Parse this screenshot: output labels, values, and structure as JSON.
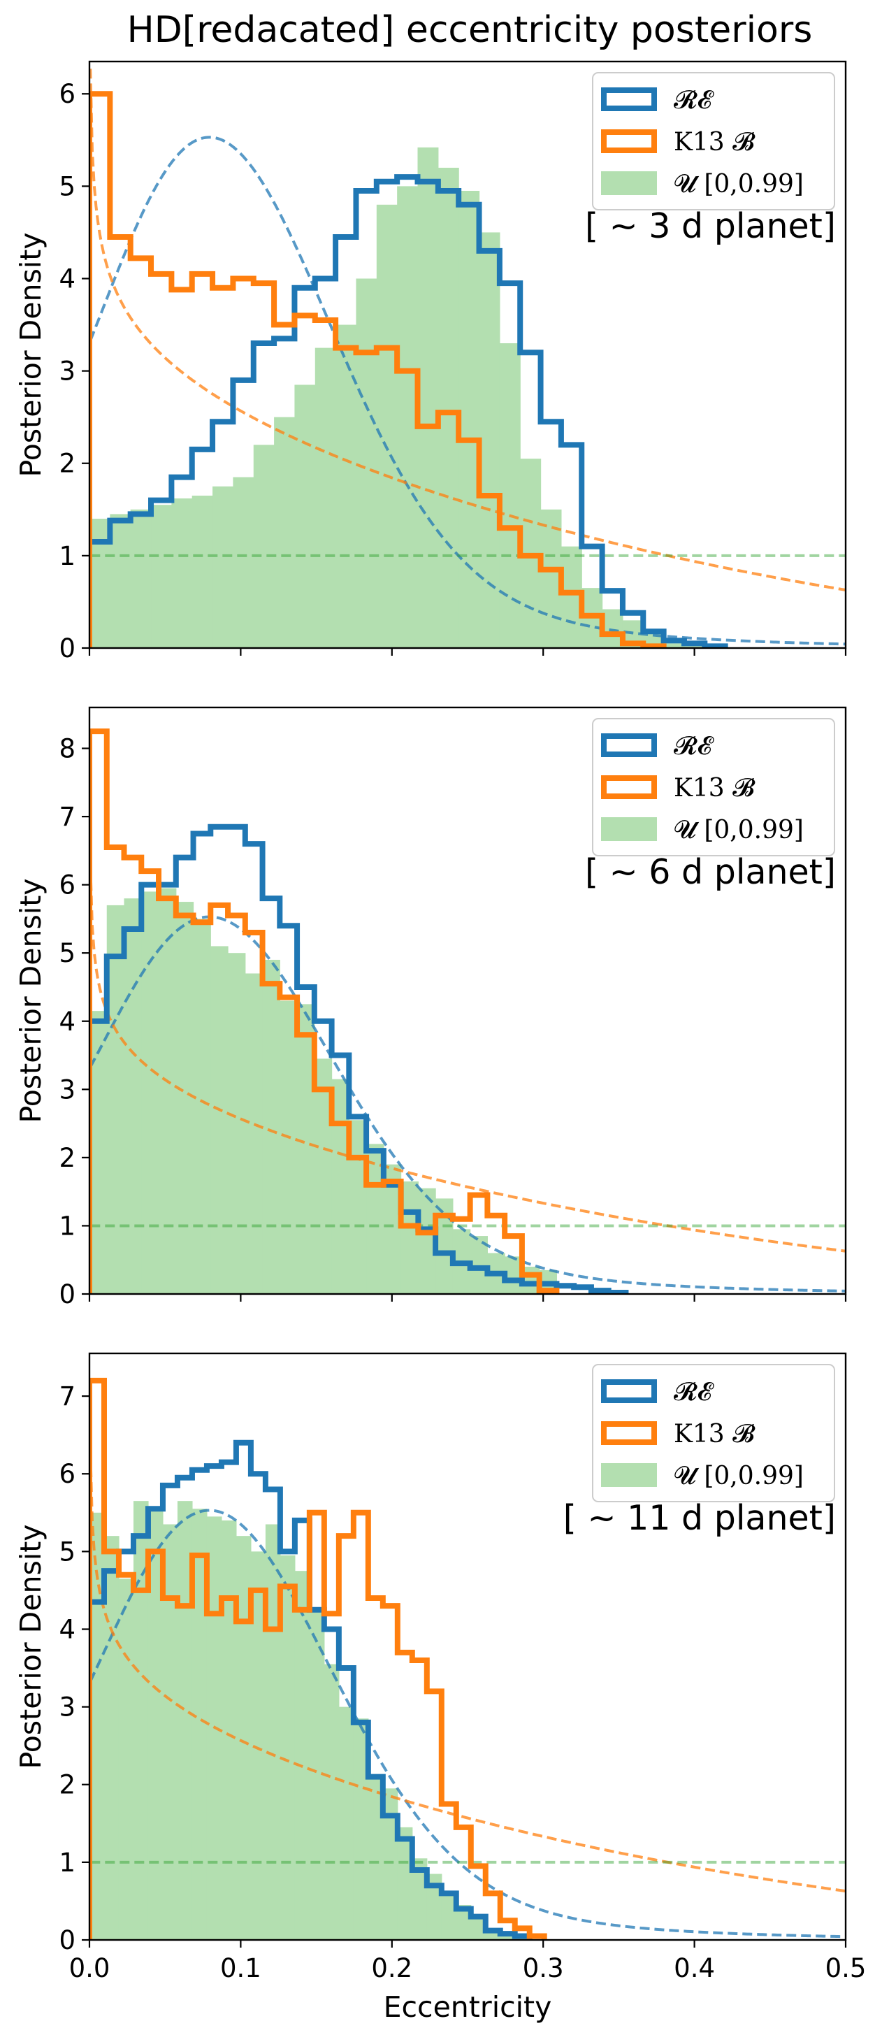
{
  "figure_title": "HD[redacated] eccentricity posteriors",
  "colors": {
    "re": "#1f77b4",
    "k13": "#ff7f0e",
    "uniform": "#2ca02c",
    "uniform_fill": "#b3dfb0"
  },
  "chart_data": [
    {
      "type": "histogram",
      "panel": "top",
      "annotation": "[$\\sim$3 d planet]",
      "annotation_display": "[ ~ 3 d planet]",
      "ylabel": "Posterior Density",
      "xlabel": "",
      "xlim": [
        0,
        0.5
      ],
      "ylim": [
        0,
        6.35
      ],
      "yticks": [
        0,
        1,
        2,
        3,
        4,
        5,
        6
      ],
      "xticks": [
        0.0,
        0.1,
        0.2,
        0.3,
        0.4,
        0.5
      ],
      "show_xticklabels": false,
      "legend": {
        "position": "top-right",
        "entries": [
          "𝓡𝓔",
          "K13 𝓑",
          "𝓤 [0,0.99]"
        ]
      },
      "bin_width": 0.01356,
      "series": [
        {
          "name": "𝓡𝓔",
          "style": "step",
          "values": [
            1.15,
            1.38,
            1.45,
            1.6,
            1.85,
            2.15,
            2.45,
            2.9,
            3.3,
            3.35,
            3.9,
            4.0,
            4.45,
            4.95,
            5.05,
            5.1,
            5.05,
            4.95,
            4.8,
            4.3,
            3.95,
            3.2,
            2.45,
            2.2,
            1.1,
            0.62,
            0.38,
            0.18,
            0.08,
            0.05,
            0.02
          ]
        },
        {
          "name": "K13 𝓑",
          "style": "step",
          "values": [
            6.0,
            4.45,
            4.22,
            4.05,
            3.88,
            4.05,
            3.9,
            4.0,
            3.95,
            3.5,
            3.6,
            3.55,
            3.25,
            3.2,
            3.25,
            3.0,
            2.4,
            2.55,
            2.25,
            1.65,
            1.3,
            1.0,
            0.85,
            0.6,
            0.35,
            0.15,
            0.05,
            0.02
          ]
        },
        {
          "name": "𝓤 [0,0.99]",
          "style": "filled",
          "values": [
            1.4,
            1.45,
            1.5,
            1.55,
            1.62,
            1.65,
            1.75,
            1.85,
            2.2,
            2.5,
            2.85,
            3.25,
            3.5,
            4.0,
            4.8,
            5.0,
            5.42,
            5.2,
            4.95,
            4.5,
            3.3,
            2.05,
            1.5,
            1.1,
            0.65,
            0.42,
            0.3,
            0.15,
            0.05,
            0.02
          ]
        },
        {
          "name": "RE prior",
          "style": "dashed",
          "color": "re",
          "function": "beta_prior_re"
        },
        {
          "name": "K13 prior",
          "style": "dashed",
          "color": "k13",
          "function": "beta_prior_k13"
        },
        {
          "name": "Uniform prior",
          "style": "dashed",
          "color": "uniform",
          "function": "uniform_1"
        }
      ]
    },
    {
      "type": "histogram",
      "panel": "middle",
      "annotation_display": "[ ~ 6 d planet]",
      "ylabel": "Posterior Density",
      "xlabel": "",
      "xlim": [
        0,
        0.5
      ],
      "ylim": [
        0,
        8.6
      ],
      "yticks": [
        0,
        1,
        2,
        3,
        4,
        5,
        6,
        7,
        8
      ],
      "xticks": [
        0.0,
        0.1,
        0.2,
        0.3,
        0.4,
        0.5
      ],
      "show_xticklabels": false,
      "legend": {
        "position": "top-right",
        "entries": [
          "𝓡𝓔",
          "K13 𝓑",
          "𝓤 [0,0.99]"
        ]
      },
      "bin_width": 0.01144,
      "series": [
        {
          "name": "𝓡𝓔",
          "style": "step",
          "values": [
            4.0,
            4.95,
            5.35,
            6.0,
            6.0,
            6.4,
            6.75,
            6.85,
            6.85,
            6.6,
            5.8,
            5.4,
            4.5,
            4.0,
            3.5,
            2.6,
            2.1,
            1.6,
            1.2,
            0.95,
            0.6,
            0.45,
            0.38,
            0.3,
            0.2,
            0.15,
            0.15,
            0.12,
            0.1,
            0.05,
            0.02
          ]
        },
        {
          "name": "K13 𝓑",
          "style": "step",
          "values": [
            8.25,
            6.55,
            6.4,
            6.2,
            5.8,
            5.55,
            5.45,
            5.7,
            5.55,
            5.3,
            4.55,
            4.35,
            3.8,
            3.0,
            2.5,
            2.0,
            1.6,
            1.65,
            1.0,
            0.9,
            1.15,
            1.1,
            1.45,
            1.15,
            0.85,
            0.28,
            0.05
          ]
        },
        {
          "name": "𝓤 [0,0.99]",
          "style": "filled",
          "values": [
            4.15,
            5.7,
            5.8,
            5.9,
            5.95,
            5.75,
            5.5,
            5.1,
            5.0,
            4.7,
            4.9,
            4.3,
            4.25,
            3.45,
            3.15,
            2.55,
            2.2,
            1.9,
            1.65,
            1.55,
            1.4,
            0.95,
            0.85,
            0.6,
            0.55,
            0.4,
            0.35
          ]
        },
        {
          "name": "RE prior",
          "style": "dashed",
          "color": "re",
          "function": "beta_prior_re"
        },
        {
          "name": "K13 prior",
          "style": "dashed",
          "color": "k13",
          "function": "beta_prior_k13"
        },
        {
          "name": "Uniform prior",
          "style": "dashed",
          "color": "uniform",
          "function": "uniform_1"
        }
      ]
    },
    {
      "type": "histogram",
      "panel": "bottom",
      "annotation_display": "[ ~ 11 d planet]",
      "ylabel": "Posterior Density",
      "xlabel": "Eccentricity",
      "xlim": [
        0,
        0.5
      ],
      "ylim": [
        0,
        7.55
      ],
      "yticks": [
        0,
        1,
        2,
        3,
        4,
        5,
        6,
        7
      ],
      "xticks": [
        0.0,
        0.1,
        0.2,
        0.3,
        0.4,
        0.5
      ],
      "xticklabels": [
        "0.0",
        "0.1",
        "0.2",
        "0.3",
        "0.4",
        "0.5"
      ],
      "show_xticklabels": true,
      "legend": {
        "position": "top-right",
        "entries": [
          "𝓡𝓔",
          "K13 𝓑",
          "𝓤 [0,0.99]"
        ]
      },
      "bin_width": 0.0097,
      "series": [
        {
          "name": "𝓡𝓔",
          "style": "step",
          "values": [
            4.35,
            4.75,
            5.0,
            5.2,
            5.55,
            5.85,
            5.95,
            6.05,
            6.1,
            6.15,
            6.4,
            6.0,
            5.8,
            5.0,
            5.4,
            4.25,
            4.0,
            3.5,
            2.8,
            2.1,
            1.6,
            1.3,
            0.9,
            0.7,
            0.6,
            0.4,
            0.3,
            0.12,
            0.08,
            0.05
          ]
        },
        {
          "name": "K13 𝓑",
          "style": "step",
          "values": [
            7.2,
            5.0,
            4.7,
            4.5,
            5.0,
            4.4,
            4.3,
            4.95,
            4.2,
            4.4,
            4.1,
            4.5,
            4.0,
            4.55,
            4.25,
            5.5,
            4.2,
            5.2,
            5.5,
            4.4,
            4.3,
            3.7,
            3.6,
            3.2,
            1.75,
            1.45,
            0.95,
            0.6,
            0.25,
            0.15,
            0.05
          ]
        },
        {
          "name": "𝓤 [0,0.99]",
          "style": "filled",
          "values": [
            5.5,
            5.2,
            4.65,
            5.65,
            5.55,
            5.35,
            5.65,
            5.55,
            5.45,
            5.4,
            5.2,
            5.0,
            5.35,
            4.95,
            4.75,
            4.25,
            3.55,
            3.0,
            2.85,
            2.1,
            1.95,
            1.45,
            1.05,
            0.85,
            0.6,
            0.45,
            0.3,
            0.15,
            0.08,
            0.05
          ]
        },
        {
          "name": "RE prior",
          "style": "dashed",
          "color": "re",
          "function": "beta_prior_re"
        },
        {
          "name": "K13 prior",
          "style": "dashed",
          "color": "k13",
          "function": "beta_prior_k13"
        },
        {
          "name": "Uniform prior",
          "style": "dashed",
          "color": "uniform",
          "function": "uniform_1"
        }
      ]
    }
  ]
}
